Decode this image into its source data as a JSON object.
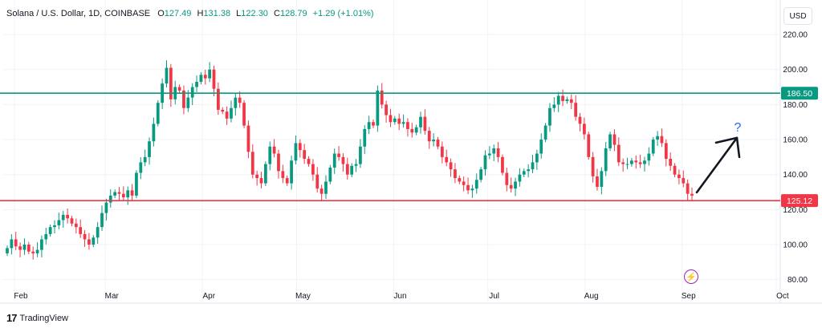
{
  "legend": {
    "symbol": "Solana / U.S. Dollar, 1D, COINBASE",
    "open_label": "O",
    "open": "127.49",
    "high_label": "H",
    "high": "131.38",
    "low_label": "L",
    "low": "122.30",
    "close_label": "C",
    "close": "128.79",
    "change": "+1.29 (+1.01%)"
  },
  "currency_button": "USD",
  "footer": {
    "brand": "TradingView",
    "mark": "17"
  },
  "icons": {
    "lightning": "lightning-icon",
    "logo": "tradingview-logo-icon"
  },
  "colors": {
    "up": "#089981",
    "down": "#f23645",
    "resistance": "#089981",
    "support": "#f23645",
    "arrow": "#131722",
    "question": "#2962ff"
  },
  "annotations": {
    "question_mark": "?"
  },
  "chart_data": {
    "type": "candlestick",
    "ylim": [
      78,
      226
    ],
    "y_ticks": [
      80,
      100,
      120,
      140,
      160,
      180,
      200,
      220
    ],
    "y_tick_labels": [
      "80.00",
      "100.00",
      "120.00",
      "140.00",
      "160.00",
      "180.00",
      "200.00",
      "220.00"
    ],
    "x_ticks": [
      {
        "label": "Feb",
        "day": 0
      },
      {
        "label": "Mar",
        "day": 29
      },
      {
        "label": "Apr",
        "day": 60
      },
      {
        "label": "May",
        "day": 90
      },
      {
        "label": "Jun",
        "day": 121
      },
      {
        "label": "Jul",
        "day": 151
      },
      {
        "label": "Aug",
        "day": 182
      },
      {
        "label": "Sep",
        "day": 213
      },
      {
        "label": "Oct",
        "day": 243
      }
    ],
    "resistance": {
      "value": 186.5,
      "label": "186.50"
    },
    "support": {
      "value": 125.12,
      "label": "125.12"
    },
    "closes": [
      98,
      103,
      99,
      97,
      100,
      96,
      95,
      97,
      103,
      106,
      110,
      111,
      114,
      117,
      115,
      112,
      110,
      106,
      103,
      100,
      104,
      110,
      118,
      124,
      128,
      130,
      129,
      127,
      131,
      128,
      141,
      147,
      150,
      159,
      169,
      181,
      192,
      201,
      183,
      190,
      188,
      178,
      184,
      190,
      193,
      197,
      195,
      200,
      189,
      177,
      176,
      172,
      178,
      184,
      181,
      168,
      153,
      140,
      138,
      135,
      146,
      156,
      152,
      142,
      138,
      135,
      148,
      158,
      154,
      149,
      146,
      140,
      132,
      129,
      136,
      144,
      152,
      150,
      146,
      140,
      145,
      146,
      156,
      166,
      170,
      168,
      188,
      180,
      174,
      170,
      172,
      169,
      170,
      166,
      164,
      167,
      173,
      165,
      159,
      160,
      156,
      150,
      147,
      143,
      138,
      136,
      134,
      131,
      132,
      137,
      143,
      151,
      152,
      155,
      150,
      141,
      134,
      132,
      136,
      140,
      142,
      143,
      147,
      152,
      160,
      168,
      178,
      180,
      185,
      182,
      183,
      181,
      173,
      169,
      163,
      150,
      139,
      133,
      142,
      155,
      163,
      157,
      147,
      146,
      146,
      148,
      147,
      146,
      148,
      152,
      160,
      162,
      158,
      149,
      145,
      140,
      138,
      135,
      129,
      128
    ]
  }
}
